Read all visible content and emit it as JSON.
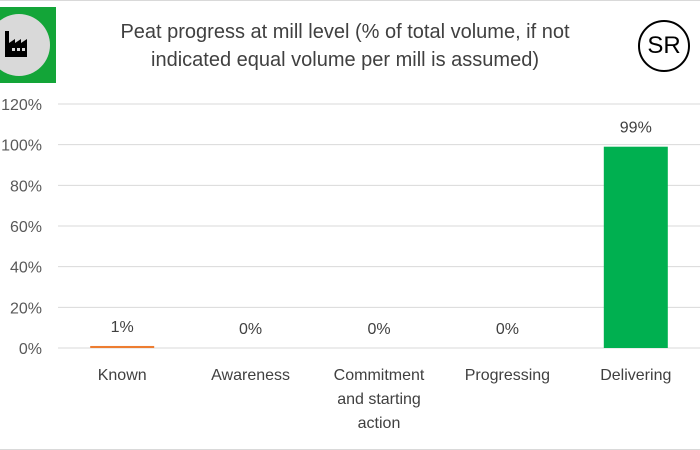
{
  "title": "Peat progress at mill level (% of total volume, if not indicated equal volume per mill is assumed)",
  "title_lines": [
    "Peat progress at mill level (% of total volume, if not",
    "indicated equal volume per mill is assumed)"
  ],
  "badge_left_icon": "factory-icon",
  "badge_right_text": "SR",
  "colors": {
    "known": "#ed7d31",
    "delivering": "#00b050",
    "badge_green": "#13a538",
    "grid": "#d9d9d9"
  },
  "chart_data": {
    "type": "bar",
    "categories": [
      "Known",
      "Awareness",
      "Commitment and starting action",
      "Progressing",
      "Delivering"
    ],
    "category_lines": [
      [
        "Known"
      ],
      [
        "Awareness"
      ],
      [
        "Commitment",
        "and starting",
        "action"
      ],
      [
        "Progressing"
      ],
      [
        "Delivering"
      ]
    ],
    "values": [
      1,
      0,
      0,
      0,
      99
    ],
    "data_labels": [
      "1%",
      "0%",
      "0%",
      "0%",
      "99%"
    ],
    "bar_colors": [
      "#ed7d31",
      "#00b050",
      "#00b050",
      "#00b050",
      "#00b050"
    ],
    "ylim": [
      0,
      120
    ],
    "yticks": [
      "0%",
      "20%",
      "40%",
      "60%",
      "80%",
      "100%",
      "120%"
    ],
    "ytick_values": [
      0,
      20,
      40,
      60,
      80,
      100,
      120
    ],
    "grid": true,
    "legend": "none",
    "xlabel": "",
    "ylabel": ""
  }
}
